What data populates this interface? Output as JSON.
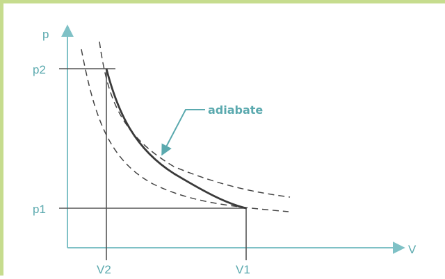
{
  "diagram": {
    "axis_labels": {
      "y": "p",
      "x": "V"
    },
    "ticks": {
      "p_high": "p2",
      "p_low": "p1",
      "v_low": "V2",
      "v_high": "V1"
    },
    "annotation": "adiabate",
    "colors": {
      "axis": "#7fc1c6",
      "label": "#5aa9ae",
      "curve": "#3a3a3a",
      "guide": "#555555",
      "border": "#c6dc8e"
    }
  }
}
